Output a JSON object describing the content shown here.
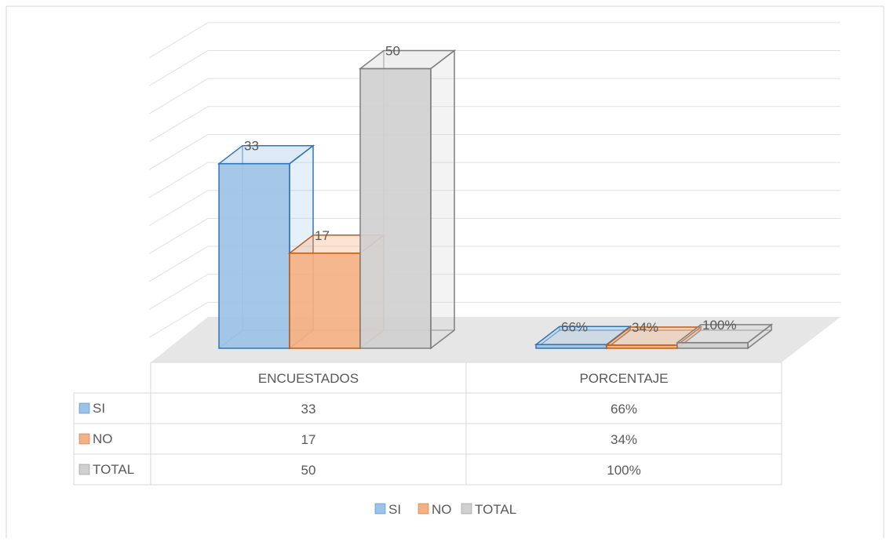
{
  "chart_data": {
    "type": "bar",
    "variant": "3d-clustered-with-data-table",
    "categories": [
      "ENCUESTADOS",
      "PORCENTAJE"
    ],
    "series": [
      {
        "name": "SI",
        "values": [
          33,
          0.66
        ],
        "labels": [
          "33",
          "66%"
        ],
        "table": [
          "33",
          "66%"
        ],
        "color": "#9dc3e6",
        "stroke": "#2e75b6"
      },
      {
        "name": "NO",
        "values": [
          17,
          0.34
        ],
        "labels": [
          "17",
          "34%"
        ],
        "table": [
          "17",
          "34%"
        ],
        "color": "#f4b183",
        "stroke": "#c55a11"
      },
      {
        "name": "TOTAL",
        "values": [
          50,
          1.0
        ],
        "labels": [
          "50",
          "100%"
        ],
        "table": [
          "50",
          "100%"
        ],
        "color": "#d0d0d0",
        "stroke": "#7f7f7f"
      }
    ],
    "ylim": [
      0,
      60
    ],
    "grid": true,
    "legend_position": "bottom",
    "title": "",
    "xlabel": "",
    "ylabel": ""
  }
}
